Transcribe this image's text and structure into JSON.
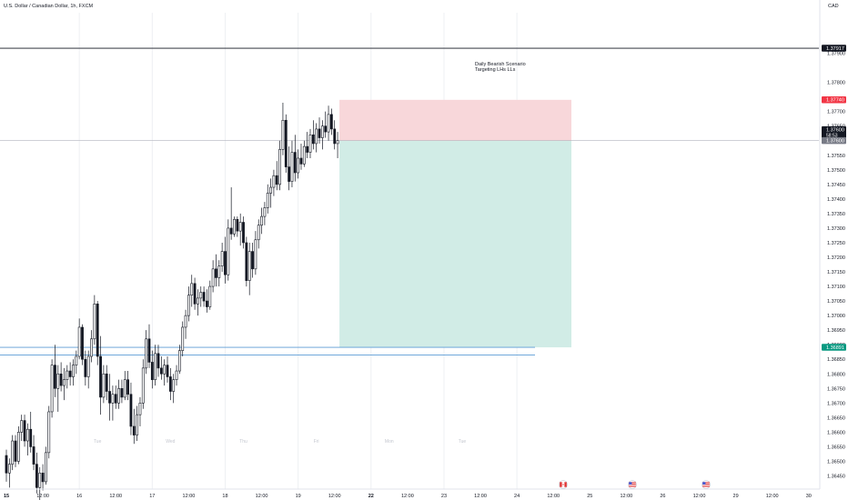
{
  "header": {
    "symbol_title": "U.S. Dollar / Canadian Dollar, 1h, FXCM",
    "currency": "CAD"
  },
  "annotation": {
    "line1": "Daily Bearish Scenario",
    "line2": "Targeting LHs LLs"
  },
  "colors": {
    "up_candle": "#ffffff",
    "down_candle": "#131722",
    "stop_zone": "#f8d7da",
    "target_zone": "#d1ece6",
    "support_line": "#5b9bd5",
    "stop_label": "#f23645",
    "target_label": "#089981",
    "price_label": "#131722",
    "entry_label": "#787b86",
    "top_zone": "#c8e6c9"
  },
  "price_labels": {
    "top_line": "1.37917",
    "stop": "1.37740",
    "last": "1.37600",
    "countdown": "58:53",
    "entry": "1.37600",
    "target": "1.36891"
  },
  "weekday_watermarks": [
    "Tue",
    "Wed",
    "Thu",
    "Fri",
    "Mon",
    "Tue"
  ],
  "chart_data": {
    "type": "candlestick",
    "symbol": "U.S. Dollar / Canadian Dollar, 1h, FXCM",
    "y_range": [
      1.3638,
      1.3797
    ],
    "y_ticks": [
      "1.37900",
      "1.37800",
      "1.37700",
      "1.37650",
      "1.37550",
      "1.37500",
      "1.37450",
      "1.37400",
      "1.37350",
      "1.37300",
      "1.37250",
      "1.37200",
      "1.37150",
      "1.37100",
      "1.37050",
      "1.37000",
      "1.36950",
      "1.36900",
      "1.36850",
      "1.36800",
      "1.36750",
      "1.36700",
      "1.36650",
      "1.36600",
      "1.36550",
      "1.36500",
      "1.36450"
    ],
    "x_ticks": [
      "15",
      "12:00",
      "16",
      "12:00",
      "17",
      "12:00",
      "18",
      "12:00",
      "19",
      "12:00",
      "22",
      "12:00",
      "23",
      "12:00",
      "24",
      "12:00",
      "25",
      "12:00",
      "26",
      "12:00",
      "29",
      "12:00",
      "30"
    ],
    "bold_x_ticks": [
      "15",
      "22"
    ],
    "horizontal_lines": [
      1.37917,
      1.376
    ],
    "support_lines": [
      1.36891,
      1.36865
    ],
    "position": {
      "direction": "short",
      "entry": 1.376,
      "stop": 1.3774,
      "target": 1.36891
    },
    "candles": [
      [
        1.3652,
        1.3654,
        1.3643,
        1.3646
      ],
      [
        1.3646,
        1.3651,
        1.3641,
        1.3649
      ],
      [
        1.3649,
        1.3659,
        1.3647,
        1.3657
      ],
      [
        1.3657,
        1.3659,
        1.3648,
        1.365
      ],
      [
        1.365,
        1.3662,
        1.3649,
        1.366
      ],
      [
        1.366,
        1.3666,
        1.3657,
        1.3664
      ],
      [
        1.3664,
        1.3666,
        1.3655,
        1.3657
      ],
      [
        1.3657,
        1.3663,
        1.3652,
        1.3661
      ],
      [
        1.3661,
        1.3667,
        1.3653,
        1.3655
      ],
      [
        1.3655,
        1.3659,
        1.3647,
        1.3649
      ],
      [
        1.3649,
        1.3653,
        1.3639,
        1.3641
      ],
      [
        1.3641,
        1.3648,
        1.3635,
        1.3646
      ],
      [
        1.3646,
        1.3649,
        1.364,
        1.3643
      ],
      [
        1.3643,
        1.3655,
        1.3642,
        1.3653
      ],
      [
        1.3653,
        1.3669,
        1.3651,
        1.3667
      ],
      [
        1.3667,
        1.3685,
        1.3665,
        1.3683
      ],
      [
        1.3683,
        1.369,
        1.3672,
        1.3675
      ],
      [
        1.3675,
        1.3683,
        1.3667,
        1.368
      ],
      [
        1.368,
        1.3684,
        1.3674,
        1.3676
      ],
      [
        1.3676,
        1.3682,
        1.3671,
        1.3678
      ],
      [
        1.3678,
        1.3683,
        1.3675,
        1.3681
      ],
      [
        1.3681,
        1.3684,
        1.3676,
        1.3679
      ],
      [
        1.3679,
        1.3685,
        1.3676,
        1.3683
      ],
      [
        1.3683,
        1.3688,
        1.368,
        1.3686
      ],
      [
        1.3686,
        1.3699,
        1.3685,
        1.3696
      ],
      [
        1.3696,
        1.3697,
        1.3683,
        1.3685
      ],
      [
        1.3685,
        1.3688,
        1.3676,
        1.3679
      ],
      [
        1.3679,
        1.3688,
        1.3675,
        1.3686
      ],
      [
        1.3686,
        1.3695,
        1.3684,
        1.3692
      ],
      [
        1.3692,
        1.3707,
        1.369,
        1.3704
      ],
      [
        1.3704,
        1.3705,
        1.3683,
        1.3686
      ],
      [
        1.3686,
        1.3693,
        1.3666,
        1.3672
      ],
      [
        1.3672,
        1.3683,
        1.367,
        1.368
      ],
      [
        1.368,
        1.3683,
        1.3671,
        1.3674
      ],
      [
        1.3674,
        1.368,
        1.3664,
        1.367
      ],
      [
        1.367,
        1.3676,
        1.3664,
        1.3673
      ],
      [
        1.3673,
        1.3676,
        1.3668,
        1.367
      ],
      [
        1.367,
        1.3678,
        1.3668,
        1.3675
      ],
      [
        1.3675,
        1.3678,
        1.367,
        1.3672
      ],
      [
        1.3672,
        1.3681,
        1.3671,
        1.3678
      ],
      [
        1.3678,
        1.3681,
        1.3671,
        1.3673
      ],
      [
        1.3673,
        1.3677,
        1.3659,
        1.3662
      ],
      [
        1.3662,
        1.3668,
        1.3656,
        1.3659
      ],
      [
        1.3659,
        1.3669,
        1.3657,
        1.3666
      ],
      [
        1.3666,
        1.3672,
        1.3662,
        1.367
      ],
      [
        1.367,
        1.3685,
        1.3668,
        1.3682
      ],
      [
        1.3682,
        1.3695,
        1.368,
        1.3692
      ],
      [
        1.3692,
        1.3697,
        1.3682,
        1.3684
      ],
      [
        1.3684,
        1.3688,
        1.3675,
        1.3678
      ],
      [
        1.3678,
        1.369,
        1.3676,
        1.3687
      ],
      [
        1.3687,
        1.369,
        1.3679,
        1.3682
      ],
      [
        1.3682,
        1.3686,
        1.3678,
        1.368
      ],
      [
        1.368,
        1.3685,
        1.3676,
        1.3683
      ],
      [
        1.3683,
        1.3686,
        1.3677,
        1.3679
      ],
      [
        1.3679,
        1.3682,
        1.3671,
        1.3674
      ],
      [
        1.3674,
        1.368,
        1.367,
        1.3678
      ],
      [
        1.3678,
        1.3683,
        1.3676,
        1.3681
      ],
      [
        1.3681,
        1.369,
        1.368,
        1.3688
      ],
      [
        1.3688,
        1.3698,
        1.3686,
        1.3696
      ],
      [
        1.3696,
        1.3702,
        1.3692,
        1.37
      ],
      [
        1.37,
        1.371,
        1.3698,
        1.3707
      ],
      [
        1.3707,
        1.3714,
        1.3703,
        1.3711
      ],
      [
        1.3711,
        1.3713,
        1.3702,
        1.3704
      ],
      [
        1.3704,
        1.3709,
        1.37,
        1.3706
      ],
      [
        1.3706,
        1.371,
        1.3703,
        1.3708
      ],
      [
        1.3708,
        1.371,
        1.3703,
        1.3705
      ],
      [
        1.3705,
        1.3709,
        1.3701,
        1.3703
      ],
      [
        1.3703,
        1.3712,
        1.3702,
        1.371
      ],
      [
        1.371,
        1.3719,
        1.3708,
        1.3716
      ],
      [
        1.3716,
        1.3721,
        1.371,
        1.3713
      ],
      [
        1.3713,
        1.3719,
        1.371,
        1.3717
      ],
      [
        1.3717,
        1.3725,
        1.3715,
        1.3722
      ],
      [
        1.3722,
        1.3727,
        1.3711,
        1.3714
      ],
      [
        1.3714,
        1.3733,
        1.3712,
        1.373
      ],
      [
        1.373,
        1.3744,
        1.3726,
        1.3728
      ],
      [
        1.3728,
        1.3734,
        1.3727,
        1.3733
      ],
      [
        1.3733,
        1.3734,
        1.3727,
        1.3729
      ],
      [
        1.3729,
        1.3735,
        1.3724,
        1.3732
      ],
      [
        1.3732,
        1.3734,
        1.3723,
        1.3725
      ],
      [
        1.3725,
        1.3727,
        1.371,
        1.3712
      ],
      [
        1.3712,
        1.3725,
        1.3707,
        1.3722
      ],
      [
        1.3722,
        1.3725,
        1.3713,
        1.3716
      ],
      [
        1.3716,
        1.3729,
        1.3714,
        1.3726
      ],
      [
        1.3726,
        1.3733,
        1.3723,
        1.3731
      ],
      [
        1.3731,
        1.3737,
        1.3728,
        1.3734
      ],
      [
        1.3734,
        1.3739,
        1.3731,
        1.3737
      ],
      [
        1.3737,
        1.3745,
        1.3735,
        1.3742
      ],
      [
        1.3742,
        1.3747,
        1.3737,
        1.3744
      ],
      [
        1.3744,
        1.375,
        1.3741,
        1.3748
      ],
      [
        1.3748,
        1.3753,
        1.3743,
        1.3745
      ],
      [
        1.3745,
        1.376,
        1.3743,
        1.3757
      ],
      [
        1.3757,
        1.3773,
        1.3755,
        1.3767
      ],
      [
        1.3767,
        1.3769,
        1.3749,
        1.3751
      ],
      [
        1.3751,
        1.3758,
        1.3743,
        1.3746
      ],
      [
        1.3746,
        1.376,
        1.3744,
        1.3756
      ],
      [
        1.3756,
        1.3762,
        1.3746,
        1.3749
      ],
      [
        1.3749,
        1.3757,
        1.3747,
        1.3754
      ],
      [
        1.3754,
        1.3759,
        1.375,
        1.3752
      ],
      [
        1.3752,
        1.376,
        1.3751,
        1.3758
      ],
      [
        1.3758,
        1.3763,
        1.3754,
        1.3756
      ],
      [
        1.3756,
        1.3764,
        1.3754,
        1.3762
      ],
      [
        1.3762,
        1.3767,
        1.3757,
        1.3759
      ],
      [
        1.3759,
        1.3766,
        1.3756,
        1.3764
      ],
      [
        1.3764,
        1.3768,
        1.3759,
        1.3761
      ],
      [
        1.3761,
        1.3767,
        1.3757,
        1.3765
      ],
      [
        1.3765,
        1.377,
        1.3761,
        1.3763
      ],
      [
        1.3763,
        1.3772,
        1.376,
        1.3769
      ],
      [
        1.3769,
        1.3771,
        1.3762,
        1.3764
      ],
      [
        1.3764,
        1.3767,
        1.3757,
        1.3759
      ],
      [
        1.3759,
        1.3763,
        1.3754,
        1.376
      ]
    ]
  }
}
